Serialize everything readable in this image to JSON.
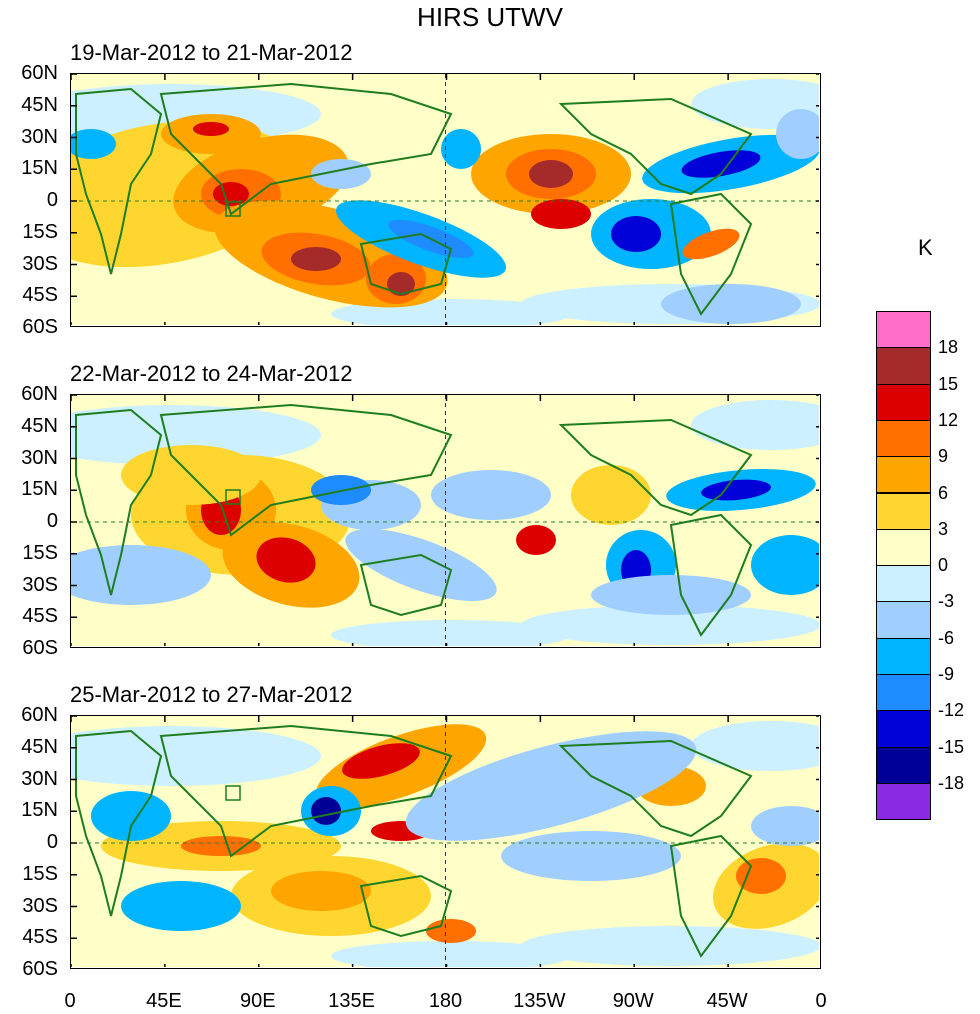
{
  "title": "HIRS UTWV",
  "panels": [
    {
      "period": "19-Mar-2012 to 21-Mar-2012"
    },
    {
      "period": "22-Mar-2012 to 24-Mar-2012"
    },
    {
      "period": "25-Mar-2012 to 27-Mar-2012"
    }
  ],
  "y_axis_labels": [
    "60N",
    "45N",
    "30N",
    "15N",
    "0",
    "15S",
    "30S",
    "45S",
    "60S"
  ],
  "x_axis_labels": [
    "0",
    "45E",
    "90E",
    "135E",
    "180",
    "135W",
    "90W",
    "45W",
    "0"
  ],
  "colorbar": {
    "unit": "K",
    "levels": [
      "18",
      "15",
      "12",
      "9",
      "6",
      "3",
      "0",
      "-3",
      "-6",
      "-9",
      "-12",
      "-15",
      "-18"
    ],
    "colors": [
      "#ff6ec7",
      "#a52a2a",
      "#dd0000",
      "#ff7000",
      "#ffa500",
      "#ffd530",
      "#ffffc8",
      "#ccf0ff",
      "#a0cfff",
      "#00b4ff",
      "#1e8cff",
      "#0000d8",
      "#000096",
      "#8a2be2"
    ]
  }
}
